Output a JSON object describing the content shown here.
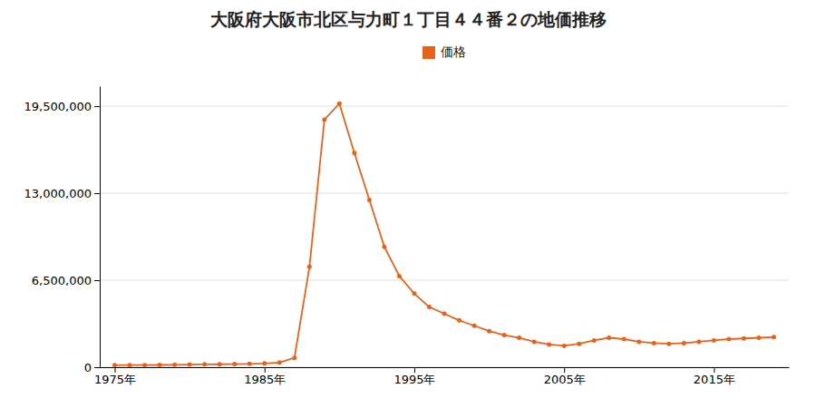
{
  "chart_data": {
    "type": "line",
    "title": "大阪府大阪市北区与力町１丁目４４番２の地価推移",
    "x": [
      1975,
      1976,
      1977,
      1978,
      1979,
      1980,
      1981,
      1982,
      1983,
      1984,
      1985,
      1986,
      1987,
      1988,
      1989,
      1990,
      1991,
      1992,
      1993,
      1994,
      1995,
      1996,
      1997,
      1998,
      1999,
      2000,
      2001,
      2002,
      2003,
      2004,
      2005,
      2006,
      2007,
      2008,
      2009,
      2010,
      2011,
      2012,
      2013,
      2014,
      2015,
      2016,
      2017,
      2018,
      2019
    ],
    "series": [
      {
        "name": "価格",
        "color": "#E8621A",
        "marker": "circle",
        "values": [
          150000,
          155000,
          160000,
          170000,
          180000,
          200000,
          215000,
          220000,
          230000,
          250000,
          280000,
          350000,
          700000,
          7500000,
          18500000,
          19700000,
          16000000,
          12500000,
          9000000,
          6800000,
          5500000,
          4500000,
          4000000,
          3500000,
          3100000,
          2700000,
          2400000,
          2200000,
          1900000,
          1700000,
          1600000,
          1750000,
          2000000,
          2200000,
          2100000,
          1900000,
          1800000,
          1750000,
          1800000,
          1900000,
          2000000,
          2100000,
          2150000,
          2200000,
          2250000
        ]
      }
    ],
    "xlim": [
      1974,
      2020
    ],
    "xticks": [
      {
        "value": 1975,
        "label": "1975年"
      },
      {
        "value": 1985,
        "label": "1985年"
      },
      {
        "value": 1995,
        "label": "1995年"
      },
      {
        "value": 2005,
        "label": "2005年"
      },
      {
        "value": 2015,
        "label": "2015年"
      }
    ],
    "ylim": [
      0,
      21000000
    ],
    "yticks": [
      0,
      {
        "value": 6500000,
        "label": "6,500,000"
      },
      {
        "value": 13000000,
        "label": "13,000,000"
      },
      {
        "value": 19500000,
        "label": "19,500,000"
      }
    ],
    "grid": true,
    "legend": "top"
  }
}
